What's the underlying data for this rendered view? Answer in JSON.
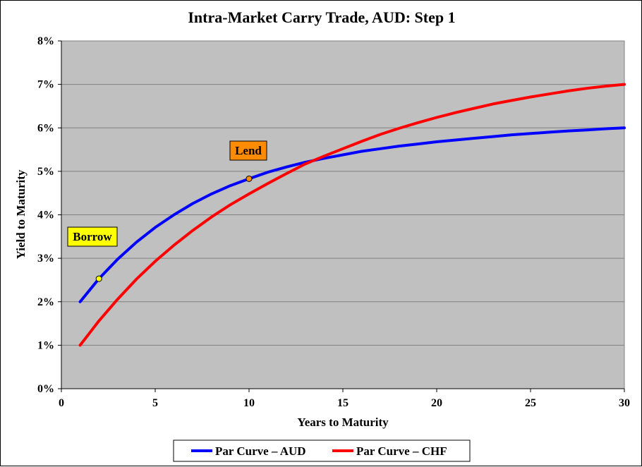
{
  "chart_data": {
    "type": "line",
    "title": "Intra-Market Carry Trade, AUD: Step 1",
    "xlabel": "Years to Maturity",
    "ylabel": "Yield to Maturity",
    "xlim": [
      0,
      30
    ],
    "ylim": [
      0,
      8
    ],
    "x_ticks": [
      0,
      5,
      10,
      15,
      20,
      25,
      30
    ],
    "x_tick_labels": [
      "0",
      "5",
      "10",
      "15",
      "20",
      "25",
      "30"
    ],
    "y_ticks": [
      0,
      1,
      2,
      3,
      4,
      5,
      6,
      7,
      8
    ],
    "y_tick_labels": [
      "0%",
      "1%",
      "2%",
      "3%",
      "4%",
      "5%",
      "6%",
      "7%",
      "8%"
    ],
    "grid": "horizontal",
    "plot_background": "#c0c0c0",
    "legend_position": "bottom",
    "series": [
      {
        "name": "Par Curve – AUD",
        "color": "#0000ff",
        "x": [
          1,
          2,
          3,
          4,
          5,
          6,
          7,
          8,
          9,
          10,
          11,
          12,
          13,
          14,
          15,
          16,
          17,
          18,
          19,
          20,
          21,
          22,
          23,
          24,
          25,
          26,
          27,
          28,
          29,
          30
        ],
        "y": [
          2.0,
          2.53,
          2.98,
          3.37,
          3.71,
          4.0,
          4.26,
          4.48,
          4.67,
          4.83,
          4.98,
          5.1,
          5.21,
          5.3,
          5.38,
          5.46,
          5.52,
          5.58,
          5.63,
          5.68,
          5.72,
          5.76,
          5.8,
          5.84,
          5.87,
          5.9,
          5.93,
          5.95,
          5.98,
          6.0
        ]
      },
      {
        "name": "Par Curve – CHF",
        "color": "#ff0000",
        "x": [
          1,
          2,
          3,
          4,
          5,
          6,
          7,
          8,
          9,
          10,
          11,
          12,
          13,
          14,
          15,
          16,
          17,
          18,
          19,
          20,
          21,
          22,
          23,
          24,
          25,
          26,
          27,
          28,
          29,
          30
        ],
        "y": [
          1.0,
          1.56,
          2.06,
          2.52,
          2.93,
          3.3,
          3.64,
          3.95,
          4.23,
          4.48,
          4.72,
          4.95,
          5.17,
          5.35,
          5.52,
          5.69,
          5.85,
          5.99,
          6.12,
          6.24,
          6.35,
          6.45,
          6.55,
          6.63,
          6.71,
          6.78,
          6.85,
          6.91,
          6.96,
          7.0
        ]
      }
    ],
    "annotations": [
      {
        "label": "Borrow",
        "x": 2,
        "y": 2.53,
        "box_color": "#ffff00",
        "marker_color": "#ffff00"
      },
      {
        "label": "Lend",
        "x": 10,
        "y": 4.83,
        "box_color": "#ff8c00",
        "marker_color": "#ff8c00"
      }
    ]
  }
}
